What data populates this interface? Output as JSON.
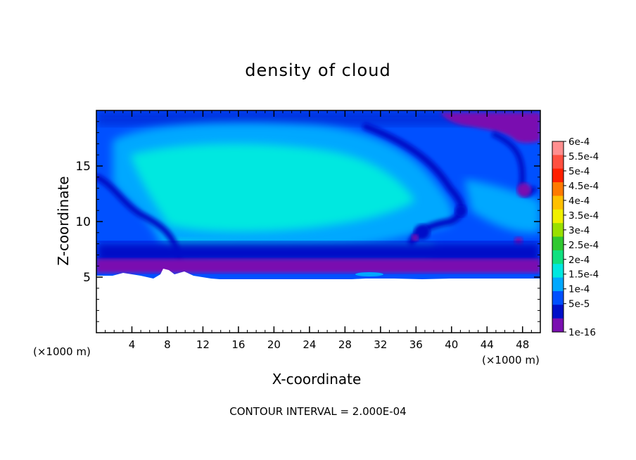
{
  "chart_data": {
    "type": "heatmap",
    "title": "density of cloud",
    "xlabel": "X-coordinate",
    "ylabel": "Z-coordinate",
    "x_unit_label": "(×1000 m)",
    "x_unit_label_right": "(×1000 m)",
    "xlim": [
      0,
      50
    ],
    "ylim": [
      0,
      20
    ],
    "x_ticks": [
      4,
      8,
      12,
      16,
      20,
      24,
      28,
      32,
      36,
      40,
      44,
      48
    ],
    "y_ticks": [
      5,
      10,
      15
    ],
    "grid": false,
    "legend": "right",
    "footer": "CONTOUR INTERVAL = 2.000E-04",
    "colorbar": {
      "labels": [
        "6e-4",
        "5.5e-4",
        "5e-4",
        "4.5e-4",
        "4e-4",
        "3.5e-4",
        "3e-4",
        "2.5e-4",
        "2e-4",
        "1.5e-4",
        "1e-4",
        "5e-5",
        "1e-16"
      ],
      "colors": [
        "#ff8f8f",
        "#ff5040",
        "#ff2000",
        "#ff7a00",
        "#ffc000",
        "#f0f000",
        "#9ae000",
        "#30c830",
        "#10e080",
        "#00e8e0",
        "#00a8ff",
        "#0050ff",
        "#0010c8",
        "#7a10b0"
      ]
    }
  }
}
